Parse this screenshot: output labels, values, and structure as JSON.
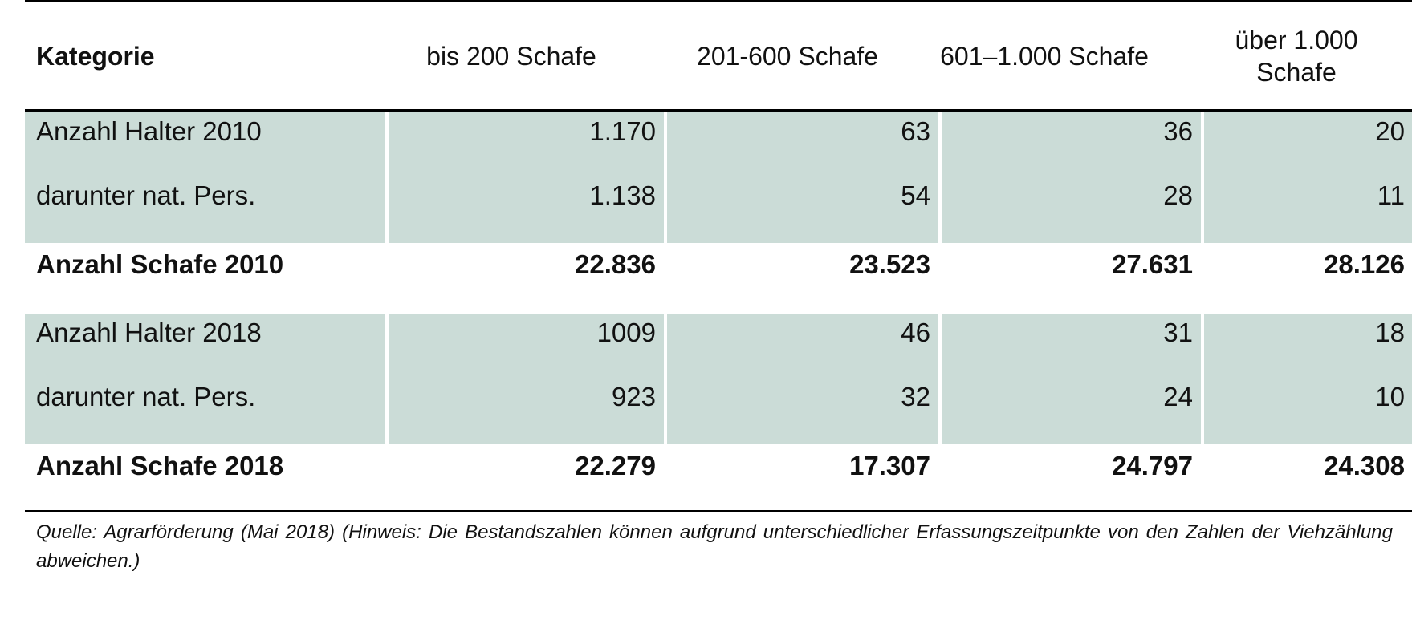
{
  "table": {
    "headers": [
      "Kategorie",
      "bis 200 Schafe",
      "201-600 Schafe",
      "601–1.000 Schafe",
      "über 1.000 Schafe"
    ],
    "rows": [
      {
        "label": "Anzahl Halter 2010",
        "values": [
          "1.170",
          "63",
          "36",
          "20"
        ]
      },
      {
        "label": "darunter nat. Pers.",
        "values": [
          "1.138",
          "54",
          "28",
          "11"
        ]
      },
      {
        "label": "Anzahl Schafe 2010",
        "values": [
          "22.836",
          "23.523",
          "27.631",
          "28.126"
        ]
      },
      {
        "label": "Anzahl Halter 2018",
        "values": [
          "1009",
          "46",
          "31",
          "18"
        ]
      },
      {
        "label": "darunter nat. Pers.",
        "values": [
          "923",
          "32",
          "24",
          "10"
        ]
      },
      {
        "label": "Anzahl Schafe 2018",
        "values": [
          "22.279",
          "17.307",
          "24.797",
          "24.308"
        ]
      }
    ],
    "shade_color": "#cbdcd7"
  },
  "note": "Quelle: Agrarförderung (Mai 2018) (Hinweis: Die Bestandszahlen können aufgrund unterschiedlicher Erfassungszeitpunkte von den Zahlen der Viehzählung abweichen.)"
}
